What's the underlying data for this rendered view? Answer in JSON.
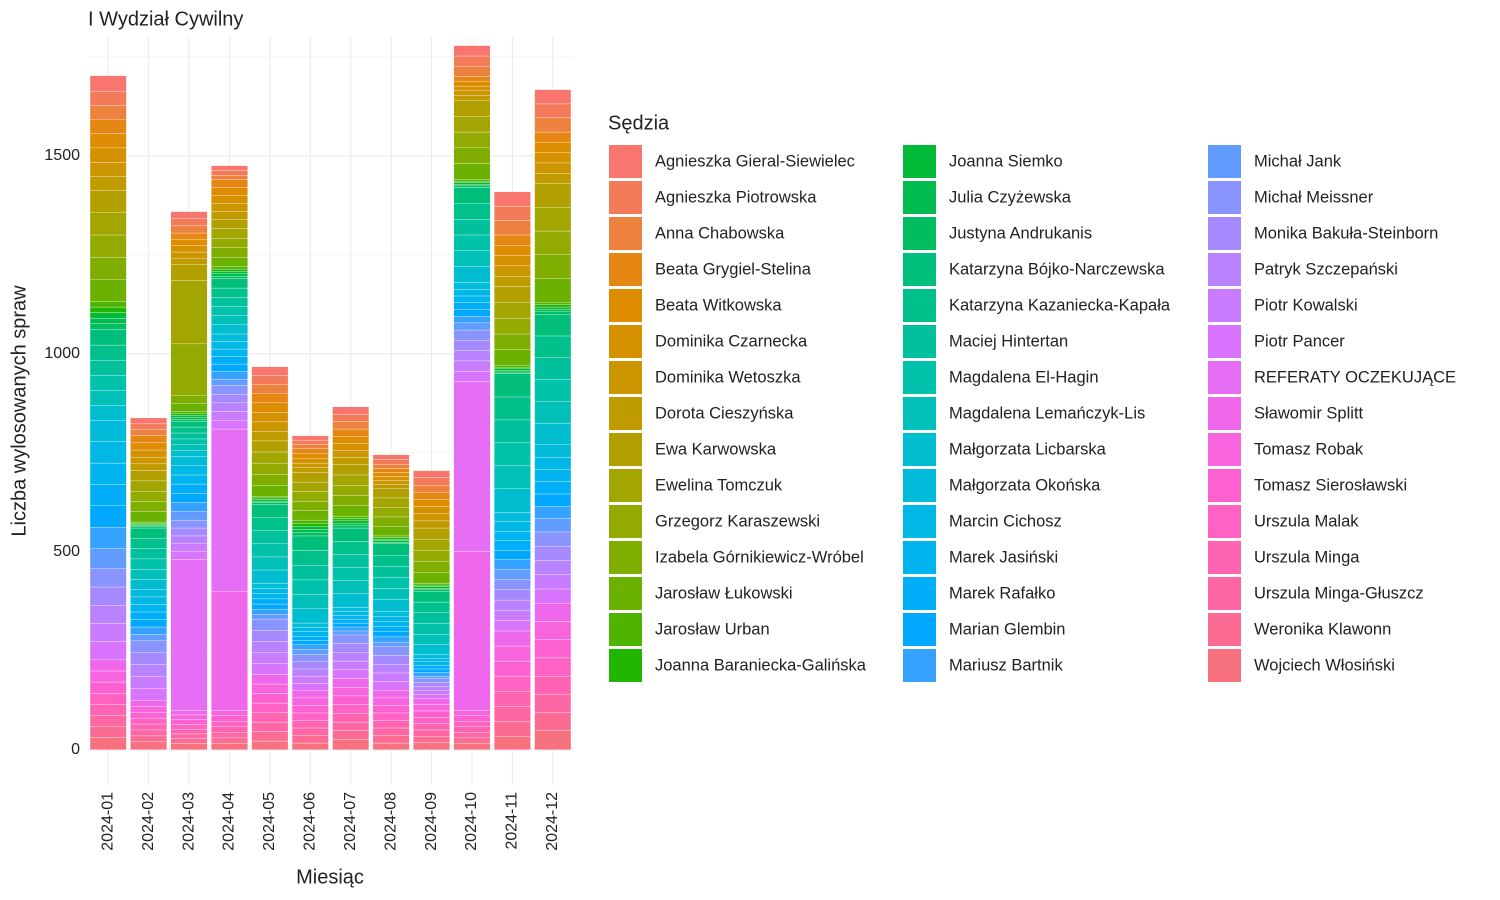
{
  "chart_data": {
    "type": "stacked_bar",
    "title": "I Wydział Cywilny",
    "x_label": "Miesiąc",
    "y_label": "Liczba wylosowanych spraw",
    "legend_title": "Sędzia",
    "legend": "right",
    "grid": true,
    "categories": [
      "2024-01",
      "2024-02",
      "2024-03",
      "2024-04",
      "2024-05",
      "2024-06",
      "2024-07",
      "2024-08",
      "2024-09",
      "2024-10",
      "2024-11",
      "2024-12"
    ],
    "ylim": [
      -89,
      1800
    ],
    "yticks": [
      0,
      500,
      1000,
      1500
    ],
    "series": [
      {
        "name": "Agnieszka Gieral-Siewielec",
        "color": "#F8766D",
        "values": [
          40,
          15,
          18,
          12,
          22,
          11,
          19,
          12,
          18,
          26,
          36,
          36
        ]
      },
      {
        "name": "Agnieszka Piotrowska",
        "color": "#F37B59",
        "values": [
          35,
          15,
          18,
          12,
          22,
          11,
          18,
          12,
          19,
          26,
          37,
          35
        ]
      },
      {
        "name": "Anna Chabowska",
        "color": "#ED813E",
        "values": [
          35,
          15,
          18,
          11,
          23,
          11,
          19,
          11,
          18,
          26,
          36,
          36
        ]
      },
      {
        "name": "Beata Grygiel-Stelina",
        "color": "#E68613",
        "values": [
          36,
          18,
          16,
          20,
          24,
          12,
          18,
          10,
          18,
          12,
          26,
          26
        ]
      },
      {
        "name": "Beata Witkowska",
        "color": "#DE8C00",
        "values": [
          36,
          18,
          16,
          20,
          24,
          12,
          18,
          10,
          18,
          12,
          26,
          26
        ]
      },
      {
        "name": "Dominika Czarnecka",
        "color": "#D69100",
        "values": [
          36,
          18,
          16,
          20,
          24,
          12,
          18,
          10,
          18,
          12,
          26,
          26
        ]
      },
      {
        "name": "Dominika Wetoszka",
        "color": "#CC9600",
        "values": [
          36,
          17,
          16,
          20,
          24,
          12,
          18,
          10,
          18,
          12,
          26,
          26
        ]
      },
      {
        "name": "Dorota Cieszyńska",
        "color": "#C09B00",
        "values": [
          36,
          17,
          16,
          20,
          24,
          12,
          18,
          10,
          18,
          12,
          26,
          26
        ]
      },
      {
        "name": "Ewa Karwowska",
        "color": "#B29F00",
        "values": [
          56,
          26,
          40,
          24,
          28,
          24,
          26,
          24,
          28,
          40,
          40,
          60
        ]
      },
      {
        "name": "Ewelina Tomczuk",
        "color": "#A3A500",
        "values": [
          56,
          26,
          160,
          24,
          28,
          24,
          26,
          24,
          28,
          40,
          40,
          60
        ]
      },
      {
        "name": "Grzegorz Karaszewski",
        "color": "#93AA00",
        "values": [
          56,
          26,
          130,
          24,
          28,
          24,
          26,
          24,
          28,
          40,
          40,
          60
        ]
      },
      {
        "name": "Izabela Górnikiewicz-Wróbel",
        "color": "#7FAE00",
        "values": [
          56,
          26,
          20,
          24,
          28,
          24,
          26,
          24,
          28,
          40,
          40,
          60
        ]
      },
      {
        "name": "Jarosław Łukowski",
        "color": "#6BB100",
        "values": [
          56,
          26,
          20,
          24,
          28,
          24,
          26,
          24,
          28,
          40,
          40,
          60
        ]
      },
      {
        "name": "Jarosław Urban",
        "color": "#4EB400",
        "values": [
          14,
          3,
          5,
          6,
          4,
          8,
          6,
          4,
          4,
          4,
          4,
          6
        ]
      },
      {
        "name": "Joanna Baraniecka-Galińska",
        "color": "#21B700",
        "values": [
          14,
          3,
          5,
          6,
          4,
          8,
          6,
          4,
          4,
          4,
          4,
          6
        ]
      },
      {
        "name": "Joanna Siemko",
        "color": "#00BA38",
        "values": [
          14,
          3,
          5,
          6,
          4,
          8,
          6,
          4,
          4,
          4,
          4,
          6
        ]
      },
      {
        "name": "Julia Czyżewska",
        "color": "#00BB4E",
        "values": [
          14,
          3,
          5,
          6,
          4,
          8,
          6,
          4,
          4,
          4,
          4,
          6
        ]
      },
      {
        "name": "Justyna Andrukanis",
        "color": "#00BD5F",
        "values": [
          14,
          3,
          5,
          6,
          4,
          8,
          6,
          4,
          4,
          4,
          4,
          6
        ]
      },
      {
        "name": "Katarzyna Bójko-Narczewska",
        "color": "#00BF7A",
        "values": [
          40,
          26,
          15,
          24,
          34,
          37,
          34,
          29,
          27,
          40,
          59,
          55
        ]
      },
      {
        "name": "Katarzyna Kazaniecka-Kapała",
        "color": "#00C08B",
        "values": [
          38,
          26,
          15,
          24,
          33,
          37,
          33,
          28,
          27,
          40,
          58,
          55
        ]
      },
      {
        "name": "Maciej Hintertan",
        "color": "#00C19C",
        "values": [
          38,
          26,
          15,
          23,
          33,
          37,
          33,
          28,
          27,
          40,
          58,
          55
        ]
      },
      {
        "name": "Magdalena El-Hagin",
        "color": "#00C1AA",
        "values": [
          38,
          26,
          15,
          23,
          33,
          37,
          33,
          28,
          27,
          40,
          58,
          55
        ]
      },
      {
        "name": "Magdalena Lemańczyk-Lis",
        "color": "#00C0B8",
        "values": [
          38,
          26,
          15,
          23,
          33,
          36,
          33,
          28,
          26,
          40,
          58,
          55
        ]
      },
      {
        "name": "Małgorzata Licbarska",
        "color": "#00BDCF",
        "values": [
          38,
          25,
          15,
          23,
          34,
          36,
          34,
          29,
          26,
          40,
          59,
          55
        ]
      },
      {
        "name": "Małgorzata Okońska",
        "color": "#00BBDA",
        "values": [
          54,
          19,
          23,
          19,
          13,
          11,
          10,
          13,
          9,
          17,
          24,
          31
        ]
      },
      {
        "name": "Marcin Cichosz",
        "color": "#00B8E5",
        "values": [
          54,
          19,
          23,
          19,
          13,
          11,
          10,
          13,
          9,
          17,
          24,
          31
        ]
      },
      {
        "name": "Marek Jasiński",
        "color": "#00B4F0",
        "values": [
          54,
          19,
          23,
          19,
          13,
          11,
          10,
          13,
          9,
          17,
          24,
          31
        ]
      },
      {
        "name": "Marek Rafałko",
        "color": "#00AEFA",
        "values": [
          54,
          19,
          23,
          19,
          13,
          11,
          10,
          13,
          9,
          17,
          24,
          31
        ]
      },
      {
        "name": "Marian Glembin",
        "color": "#00A9FF",
        "values": [
          54,
          19,
          23,
          19,
          13,
          11,
          10,
          13,
          9,
          17,
          24,
          31
        ]
      },
      {
        "name": "Mariusz Bartnik",
        "color": "#35A2FF",
        "values": [
          54,
          19,
          23,
          19,
          13,
          11,
          10,
          13,
          9,
          17,
          24,
          31
        ]
      },
      {
        "name": "Michał Jank",
        "color": "#619CFF",
        "values": [
          51,
          16,
          22,
          16,
          12,
          14,
          10,
          12,
          6,
          18,
          26,
          34
        ]
      },
      {
        "name": "Michał Meissner",
        "color": "#8A94FF",
        "values": [
          46,
          30,
          20,
          22,
          28,
          18,
          22,
          22,
          10,
          26,
          26,
          36
        ]
      },
      {
        "name": "Monika Bakuła-Steinborn",
        "color": "#A58AFF",
        "values": [
          46,
          30,
          20,
          22,
          28,
          18,
          22,
          22,
          10,
          26,
          26,
          36
        ]
      },
      {
        "name": "Patryk Szczepański",
        "color": "#B983FF",
        "values": [
          46,
          30,
          20,
          22,
          28,
          18,
          22,
          22,
          10,
          26,
          26,
          36
        ]
      },
      {
        "name": "Piotr Kowalski",
        "color": "#C97CFF",
        "values": [
          46,
          30,
          20,
          22,
          28,
          18,
          22,
          22,
          10,
          26,
          26,
          36
        ]
      },
      {
        "name": "Piotr Pancer",
        "color": "#D874FD",
        "values": [
          46,
          30,
          20,
          22,
          28,
          18,
          22,
          22,
          10,
          26,
          26,
          36
        ]
      },
      {
        "name": "REFERATY OCZEKUJĄCE",
        "color": "#E56EF5",
        "values": [
          0,
          0,
          380,
          410,
          0,
          0,
          0,
          0,
          0,
          430,
          0,
          0
        ]
      },
      {
        "name": "Sławomir Splitt",
        "color": "#EF67EB",
        "values": [
          28,
          15,
          12,
          300,
          24,
          19,
          22,
          19,
          16,
          400,
          38,
          46
        ]
      },
      {
        "name": "Tomasz Robak",
        "color": "#F864DE",
        "values": [
          28,
          15,
          12,
          14,
          24,
          19,
          22,
          19,
          16,
          14,
          38,
          46
        ]
      },
      {
        "name": "Tomasz Sierosławski",
        "color": "#FD61D1",
        "values": [
          28,
          15,
          12,
          14,
          24,
          19,
          22,
          19,
          16,
          14,
          38,
          46
        ]
      },
      {
        "name": "Urszula Malak",
        "color": "#FF62C3",
        "values": [
          28,
          15,
          12,
          14,
          24,
          19,
          22,
          19,
          16,
          14,
          38,
          46
        ]
      },
      {
        "name": "Urszula Minga",
        "color": "#FF64B2",
        "values": [
          28,
          15,
          12,
          14,
          24,
          19,
          22,
          19,
          16,
          14,
          38,
          46
        ]
      },
      {
        "name": "Urszula Minga-Głuszcz",
        "color": "#FF67A4",
        "values": [
          28,
          15,
          12,
          14,
          24,
          19,
          22,
          19,
          16,
          14,
          38,
          46
        ]
      },
      {
        "name": "Weronika Klawonn",
        "color": "#FC6B93",
        "values": [
          28,
          15,
          12,
          14,
          24,
          19,
          22,
          19,
          16,
          14,
          38,
          46
        ]
      },
      {
        "name": "Wojciech Włosiński",
        "color": "#F8717F",
        "values": [
          31,
          20,
          16,
          16,
          22,
          17,
          26,
          17,
          18,
          16,
          34,
          48
        ]
      }
    ]
  }
}
